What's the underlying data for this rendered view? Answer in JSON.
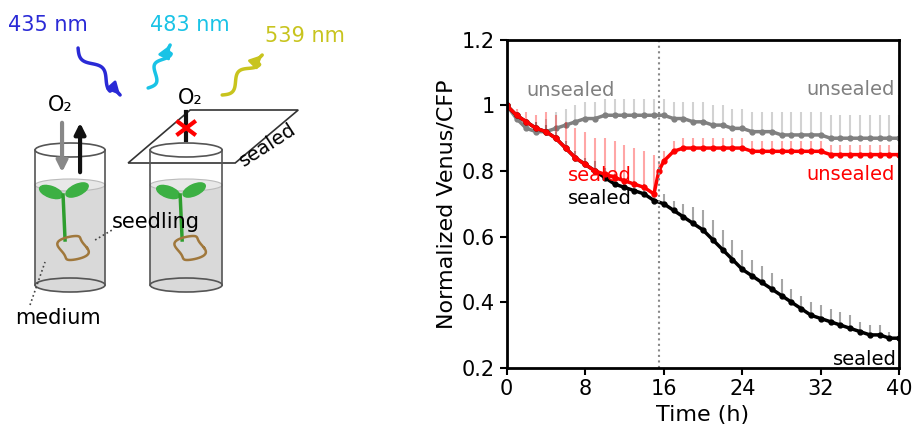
{
  "diagram": {
    "wavelengths": [
      {
        "text": "435 nm",
        "color": "#2a2ad6"
      },
      {
        "text": "483 nm",
        "color": "#19c3e6"
      },
      {
        "text": "539 nm",
        "color": "#c8c41e"
      }
    ],
    "gas_labels": [
      "O₂",
      "O₂"
    ],
    "lid": "sealed",
    "seedling": "seedling",
    "medium": "medium"
  },
  "chart_data": {
    "type": "line",
    "xlabel": "Time (h)",
    "ylabel": "Normalized Venus/CFP",
    "xlim": [
      0,
      40
    ],
    "xticks": [
      0,
      8,
      16,
      24,
      32,
      40
    ],
    "ylim": [
      0.2,
      1.2
    ],
    "yticks": [
      0.2,
      0.4,
      0.6,
      0.8,
      1,
      1.2
    ],
    "vline": 15.5,
    "series": [
      {
        "color": "#808080",
        "marker": "o",
        "line_style": "solid",
        "x": [
          0,
          1,
          2,
          3,
          4,
          5,
          6,
          7,
          8,
          9,
          10,
          11,
          12,
          13,
          14,
          15,
          16,
          17,
          18,
          19,
          20,
          21,
          22,
          23,
          24,
          25,
          26,
          27,
          28,
          29,
          30,
          31,
          32,
          33,
          34,
          35,
          36,
          37,
          38,
          39,
          40
        ],
        "values": [
          1.0,
          0.96,
          0.93,
          0.92,
          0.92,
          0.93,
          0.94,
          0.95,
          0.96,
          0.96,
          0.97,
          0.97,
          0.97,
          0.97,
          0.97,
          0.97,
          0.97,
          0.96,
          0.96,
          0.95,
          0.95,
          0.94,
          0.94,
          0.93,
          0.93,
          0.92,
          0.92,
          0.92,
          0.91,
          0.91,
          0.91,
          0.91,
          0.91,
          0.9,
          0.9,
          0.9,
          0.9,
          0.9,
          0.9,
          0.9,
          0.9
        ],
        "error": [
          0,
          0.01,
          0.02,
          0.03,
          0.04,
          0.05,
          0.05,
          0.05,
          0.05,
          0.05,
          0.05,
          0.05,
          0.05,
          0.05,
          0.05,
          0.05,
          0.05,
          0.05,
          0.05,
          0.06,
          0.06,
          0.06,
          0.06,
          0.06,
          0.06,
          0.06,
          0.06,
          0.06,
          0.07,
          0.07,
          0.07,
          0.07,
          0.07,
          0.07,
          0.07,
          0.07,
          0.07,
          0.07,
          0.07,
          0.07,
          0.07
        ]
      },
      {
        "color": "#000000",
        "marker": "o",
        "line_style": "solid",
        "x": [
          0,
          1,
          2,
          3,
          4,
          5,
          6,
          7,
          8,
          9,
          10,
          11,
          12,
          13,
          14,
          15,
          16,
          17,
          18,
          19,
          20,
          21,
          22,
          23,
          24,
          25,
          26,
          27,
          28,
          29,
          30,
          31,
          32,
          33,
          34,
          35,
          36,
          37,
          38,
          39,
          40
        ],
        "values": [
          1.0,
          0.97,
          0.95,
          0.93,
          0.92,
          0.9,
          0.87,
          0.84,
          0.82,
          0.8,
          0.78,
          0.76,
          0.75,
          0.74,
          0.73,
          0.71,
          0.7,
          0.68,
          0.66,
          0.64,
          0.62,
          0.59,
          0.56,
          0.53,
          0.5,
          0.48,
          0.46,
          0.44,
          0.42,
          0.4,
          0.38,
          0.36,
          0.35,
          0.34,
          0.33,
          0.32,
          0.31,
          0.3,
          0.3,
          0.29,
          0.29
        ],
        "error": [
          0,
          0.01,
          0.01,
          0.02,
          0.02,
          0.02,
          0.02,
          0.02,
          0.02,
          0.03,
          0.03,
          0.03,
          0.03,
          0.03,
          0.03,
          0.03,
          0.03,
          0.03,
          0.04,
          0.05,
          0.06,
          0.06,
          0.06,
          0.06,
          0.06,
          0.05,
          0.05,
          0.05,
          0.05,
          0.04,
          0.04,
          0.04,
          0.04,
          0.04,
          0.04,
          0.04,
          0.03,
          0.03,
          0.03,
          0.02,
          0.02
        ]
      },
      {
        "color": "#ff0000",
        "marker": "o",
        "line_style": "solid",
        "x": [
          0,
          1,
          2,
          3,
          4,
          5,
          6,
          7,
          8,
          9,
          10,
          11,
          12,
          13,
          14,
          15,
          15.5,
          16,
          17,
          18,
          19,
          20,
          21,
          22,
          23,
          24,
          25,
          26,
          27,
          28,
          29,
          30,
          31,
          32,
          33,
          34,
          35,
          36,
          37,
          38,
          39,
          40
        ],
        "values": [
          1.0,
          0.97,
          0.95,
          0.93,
          0.92,
          0.9,
          0.87,
          0.84,
          0.82,
          0.8,
          0.79,
          0.78,
          0.77,
          0.76,
          0.75,
          0.73,
          0.8,
          0.83,
          0.86,
          0.87,
          0.87,
          0.87,
          0.87,
          0.87,
          0.87,
          0.87,
          0.86,
          0.86,
          0.86,
          0.86,
          0.86,
          0.86,
          0.86,
          0.86,
          0.85,
          0.85,
          0.85,
          0.85,
          0.85,
          0.85,
          0.85,
          0.85
        ],
        "error": [
          0,
          0.02,
          0.03,
          0.04,
          0.06,
          0.07,
          0.08,
          0.09,
          0.1,
          0.1,
          0.11,
          0.11,
          0.11,
          0.11,
          0.11,
          0.12,
          0.03,
          0.03,
          0.03,
          0.03,
          0.03,
          0.03,
          0.03,
          0.03,
          0.03,
          0.03,
          0.03,
          0.03,
          0.03,
          0.03,
          0.03,
          0.03,
          0.03,
          0.03,
          0.03,
          0.03,
          0.03,
          0.03,
          0.03,
          0.03,
          0.03,
          0.03
        ]
      }
    ],
    "annotations": [
      {
        "text": "unsealed",
        "color": "#808080"
      },
      {
        "text": "unsealed",
        "color": "#808080"
      },
      {
        "text": "unsealed",
        "color": "#ff0000"
      },
      {
        "text": "sealed",
        "color": "#ff0000"
      },
      {
        "text": "sealed",
        "color": "#000000"
      },
      {
        "text": "sealed",
        "color": "#000000"
      }
    ]
  }
}
